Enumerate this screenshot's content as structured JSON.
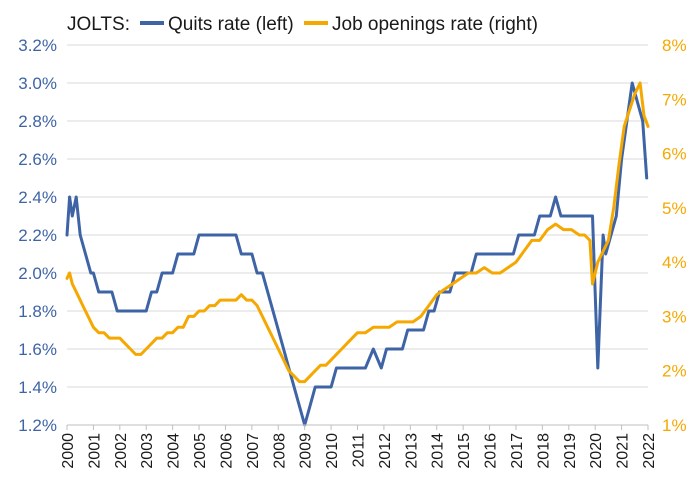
{
  "chart_data": {
    "type": "line",
    "legend": {
      "prefix": "JOLTS:",
      "placement": "top-left",
      "items": [
        {
          "name": "Quits rate (left)",
          "color": "#3e64a6"
        },
        {
          "name": "Job openings rate (right)",
          "color": "#f5a800"
        }
      ]
    },
    "x_ticks": [
      "2000",
      "2001",
      "2002",
      "2003",
      "2004",
      "2005",
      "2006",
      "2007",
      "2008",
      "2009",
      "2010",
      "2011",
      "2012",
      "2013",
      "2014",
      "2015",
      "2016",
      "2017",
      "2018",
      "2019",
      "2020",
      "2021",
      "2022"
    ],
    "xlim": [
      2000,
      2022
    ],
    "y_left": {
      "lim": [
        1.2,
        3.2
      ],
      "ticks": [
        "1.2%",
        "1.4%",
        "1.6%",
        "1.8%",
        "2.0%",
        "2.2%",
        "2.4%",
        "2.6%",
        "2.8%",
        "3.0%",
        "3.2%"
      ],
      "color": "#3e64a6"
    },
    "y_right": {
      "lim": [
        1,
        8
      ],
      "ticks": [
        "1%",
        "2%",
        "3%",
        "4%",
        "5%",
        "6%",
        "7%",
        "8%"
      ],
      "color": "#f5a800"
    },
    "grid": "horizontal",
    "series": [
      {
        "name": "Quits rate (left)",
        "axis": "left",
        "color": "#3e64a6",
        "x": [
          2000.0,
          2000.1,
          2000.2,
          2000.35,
          2000.5,
          2000.7,
          2000.9,
          2001.0,
          2001.2,
          2001.35,
          2001.5,
          2001.7,
          2001.9,
          2002.2,
          2002.5,
          2002.8,
          2003.0,
          2003.2,
          2003.4,
          2003.6,
          2003.8,
          2004.0,
          2004.2,
          2004.4,
          2004.6,
          2004.8,
          2005.0,
          2005.2,
          2005.4,
          2005.6,
          2005.8,
          2006.0,
          2006.2,
          2006.4,
          2006.6,
          2006.8,
          2007.0,
          2007.2,
          2007.4,
          2007.6,
          2007.8,
          2008.0,
          2008.2,
          2008.4,
          2008.6,
          2008.8,
          2009.0,
          2009.2,
          2009.4,
          2009.6,
          2009.8,
          2010.0,
          2010.2,
          2010.4,
          2010.6,
          2010.8,
          2011.0,
          2011.3,
          2011.6,
          2011.9,
          2012.1,
          2012.3,
          2012.5,
          2012.7,
          2012.9,
          2013.1,
          2013.3,
          2013.5,
          2013.7,
          2013.9,
          2014.1,
          2014.3,
          2014.5,
          2014.7,
          2014.9,
          2015.1,
          2015.3,
          2015.5,
          2015.7,
          2015.9,
          2016.1,
          2016.3,
          2016.5,
          2016.7,
          2016.9,
          2017.1,
          2017.3,
          2017.5,
          2017.7,
          2017.9,
          2018.1,
          2018.3,
          2018.5,
          2018.7,
          2018.9,
          2019.1,
          2019.3,
          2019.5,
          2019.7,
          2019.9,
          2020.1,
          2020.3,
          2020.4,
          2020.6,
          2020.8,
          2021.0,
          2021.2,
          2021.4,
          2021.6,
          2021.8,
          2021.95
        ],
        "values": [
          2.2,
          2.4,
          2.3,
          2.4,
          2.2,
          2.1,
          2.0,
          2.0,
          1.9,
          1.9,
          1.9,
          1.9,
          1.8,
          1.8,
          1.8,
          1.8,
          1.8,
          1.9,
          1.9,
          2.0,
          2.0,
          2.0,
          2.1,
          2.1,
          2.1,
          2.1,
          2.2,
          2.2,
          2.2,
          2.2,
          2.2,
          2.2,
          2.2,
          2.2,
          2.1,
          2.1,
          2.1,
          2.0,
          2.0,
          1.9,
          1.8,
          1.7,
          1.6,
          1.5,
          1.4,
          1.3,
          1.2,
          1.3,
          1.4,
          1.4,
          1.4,
          1.4,
          1.5,
          1.5,
          1.5,
          1.5,
          1.5,
          1.5,
          1.6,
          1.5,
          1.6,
          1.6,
          1.6,
          1.6,
          1.7,
          1.7,
          1.7,
          1.7,
          1.8,
          1.8,
          1.9,
          1.9,
          1.9,
          2.0,
          2.0,
          2.0,
          2.0,
          2.1,
          2.1,
          2.1,
          2.1,
          2.1,
          2.1,
          2.1,
          2.1,
          2.2,
          2.2,
          2.2,
          2.2,
          2.3,
          2.3,
          2.3,
          2.4,
          2.3,
          2.3,
          2.3,
          2.3,
          2.3,
          2.3,
          2.3,
          1.5,
          2.2,
          2.1,
          2.2,
          2.3,
          2.6,
          2.8,
          3.0,
          2.9,
          2.8,
          2.5
        ]
      },
      {
        "name": "Job openings rate (right)",
        "axis": "right",
        "color": "#f5a800",
        "x": [
          2000.0,
          2000.1,
          2000.2,
          2000.4,
          2000.6,
          2000.8,
          2001.0,
          2001.2,
          2001.4,
          2001.6,
          2001.8,
          2002.0,
          2002.2,
          2002.4,
          2002.6,
          2002.8,
          2003.0,
          2003.2,
          2003.4,
          2003.6,
          2003.8,
          2004.0,
          2004.2,
          2004.4,
          2004.6,
          2004.8,
          2005.0,
          2005.2,
          2005.4,
          2005.6,
          2005.8,
          2006.0,
          2006.2,
          2006.4,
          2006.6,
          2006.8,
          2007.0,
          2007.2,
          2007.4,
          2007.6,
          2007.8,
          2008.0,
          2008.2,
          2008.4,
          2008.6,
          2008.8,
          2009.0,
          2009.2,
          2009.4,
          2009.6,
          2009.8,
          2010.0,
          2010.2,
          2010.4,
          2010.6,
          2010.8,
          2011.0,
          2011.3,
          2011.6,
          2011.9,
          2012.2,
          2012.5,
          2012.8,
          2013.1,
          2013.4,
          2013.7,
          2014.0,
          2014.3,
          2014.6,
          2014.9,
          2015.2,
          2015.5,
          2015.8,
          2016.1,
          2016.4,
          2016.7,
          2017.0,
          2017.3,
          2017.6,
          2017.9,
          2018.2,
          2018.5,
          2018.8,
          2019.1,
          2019.4,
          2019.6,
          2019.8,
          2019.9,
          2020.0,
          2020.1,
          2020.3,
          2020.5,
          2020.7,
          2020.9,
          2021.1,
          2021.3,
          2021.5,
          2021.7,
          2021.85,
          2022.0
        ],
        "values": [
          3.7,
          3.8,
          3.6,
          3.4,
          3.2,
          3.0,
          2.8,
          2.7,
          2.7,
          2.6,
          2.6,
          2.6,
          2.5,
          2.4,
          2.3,
          2.3,
          2.4,
          2.5,
          2.6,
          2.6,
          2.7,
          2.7,
          2.8,
          2.8,
          3.0,
          3.0,
          3.1,
          3.1,
          3.2,
          3.2,
          3.3,
          3.3,
          3.3,
          3.3,
          3.4,
          3.3,
          3.3,
          3.2,
          3.0,
          2.8,
          2.6,
          2.4,
          2.2,
          2.0,
          1.9,
          1.8,
          1.8,
          1.9,
          2.0,
          2.1,
          2.1,
          2.2,
          2.3,
          2.4,
          2.5,
          2.6,
          2.7,
          2.7,
          2.8,
          2.8,
          2.8,
          2.9,
          2.9,
          2.9,
          3.0,
          3.2,
          3.4,
          3.5,
          3.6,
          3.7,
          3.8,
          3.8,
          3.9,
          3.8,
          3.8,
          3.9,
          4.0,
          4.2,
          4.4,
          4.4,
          4.6,
          4.7,
          4.6,
          4.6,
          4.5,
          4.5,
          4.4,
          3.6,
          3.8,
          4.0,
          4.2,
          4.4,
          5.0,
          5.8,
          6.5,
          6.8,
          7.1,
          7.3,
          6.7,
          6.5
        ]
      }
    ]
  }
}
